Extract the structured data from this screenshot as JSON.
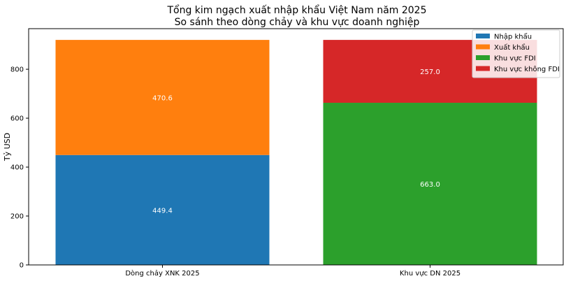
{
  "chart_data": {
    "type": "bar",
    "stacked": true,
    "title": "Tổng kim ngạch xuất nhập khẩu Việt Nam năm 2025",
    "subtitle": "So sánh theo dòng chảy và khu vực doanh nghiệp",
    "xlabel": "",
    "ylabel": "Tỷ USD",
    "ylim": [
      0,
      966
    ],
    "yticks": [
      0,
      200,
      400,
      600,
      800
    ],
    "categories": [
      "Dòng chảy XNK 2025",
      "Khu vực DN 2025"
    ],
    "series": [
      {
        "name": "Nhập khẩu",
        "category": 0,
        "base": 0,
        "value": 449.4,
        "label": "449.4",
        "color": "#1f77b4"
      },
      {
        "name": "Xuất khẩu",
        "category": 0,
        "base": 449.4,
        "value": 470.6,
        "label": "470.6",
        "color": "#ff7f0e"
      },
      {
        "name": "Khu vực FDI",
        "category": 1,
        "base": 0,
        "value": 663.0,
        "label": "663.0",
        "color": "#2ca02c"
      },
      {
        "name": "Khu vực không FDI",
        "category": 1,
        "base": 663.0,
        "value": 257.0,
        "label": "257.0",
        "color": "#d62728"
      }
    ],
    "legend_position": "top-right",
    "grid": false
  }
}
